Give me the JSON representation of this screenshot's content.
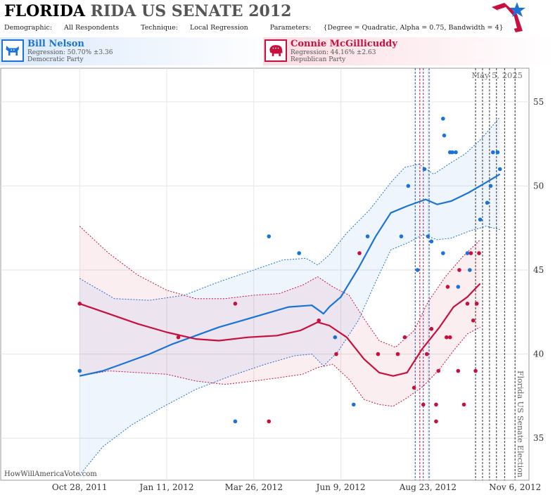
{
  "header": {
    "title_bold": "FLORIDA",
    "title_rest": "RIDA US SENATE 2012",
    "demographic_label": "Demographic:",
    "demographic_value": "All Respondents",
    "technique_label": "Technique:",
    "technique_value": "Local Regression",
    "parameters_label": "Parameters:",
    "parameters_value": "{Degree = Quadratic, Alpha = 0.75, Bandwidth = 4}"
  },
  "candidates": [
    {
      "name": "Bill Nelson",
      "regression": "Regression: 50.70% ±3.36",
      "party": "Democratic Party",
      "color": "#1a73d9"
    },
    {
      "name": "Connie McGillicuddy",
      "regression": "Regression: 44.16% ±2.63",
      "party": "Republican Party",
      "color": "#c8103e"
    }
  ],
  "footer": {
    "site": "HowWillAmericaVote.com"
  },
  "chart_data": {
    "type": "scatter",
    "x_tick_labels": [
      "Oct 28, 2011",
      "Jan 11, 2012",
      "Mar 26, 2012",
      "Jun 9, 2012",
      "Aug 23, 2012",
      "Nov 6, 2012"
    ],
    "x_ticks_day": [
      0,
      75,
      150,
      225,
      300,
      375
    ],
    "y_ticks": [
      35,
      40,
      45,
      50,
      55
    ],
    "xlim_day": [
      -68,
      387
    ],
    "ylim": [
      32.5,
      57
    ],
    "date_label": "May 5, 2025",
    "election_label": "Florida US Senate Election",
    "election_day": 375,
    "markers": [
      {
        "day": 289,
        "color": "#1a4fa0"
      },
      {
        "day": 293,
        "color": "#c8103e"
      },
      {
        "day": 296,
        "color": "#7b2a7b"
      },
      {
        "day": 301,
        "color": "#1a4fa0"
      },
      {
        "day": 341,
        "color": "#333"
      },
      {
        "day": 347,
        "color": "#333"
      },
      {
        "day": 353,
        "color": "#333"
      },
      {
        "day": 359,
        "color": "#333"
      },
      {
        "day": 366,
        "color": "#333"
      },
      {
        "day": 375,
        "color": "#333"
      }
    ],
    "series": [
      {
        "name": "Bill Nelson",
        "color": "#1a73d9",
        "points": [
          [
            0,
            39
          ],
          [
            134,
            36
          ],
          [
            163,
            47
          ],
          [
            189,
            46
          ],
          [
            220,
            41
          ],
          [
            236,
            37
          ],
          [
            248,
            47
          ],
          [
            277,
            47
          ],
          [
            283,
            50
          ],
          [
            291,
            45
          ],
          [
            297,
            51
          ],
          [
            300,
            47
          ],
          [
            303,
            46.7
          ],
          [
            313,
            46
          ],
          [
            313,
            54
          ],
          [
            314,
            53
          ],
          [
            319,
            52
          ],
          [
            321,
            52
          ],
          [
            324,
            52
          ],
          [
            326,
            44
          ],
          [
            334,
            46
          ],
          [
            336,
            45
          ],
          [
            345,
            48
          ],
          [
            351,
            49
          ],
          [
            354,
            50
          ],
          [
            356,
            52
          ],
          [
            360,
            52
          ],
          [
            362,
            51
          ]
        ],
        "fit": [
          [
            0,
            38.7
          ],
          [
            20,
            39.0
          ],
          [
            40,
            39.5
          ],
          [
            60,
            40.0
          ],
          [
            80,
            40.6
          ],
          [
            100,
            41.1
          ],
          [
            120,
            41.6
          ],
          [
            140,
            42.0
          ],
          [
            160,
            42.4
          ],
          [
            180,
            42.8
          ],
          [
            200,
            42.9
          ],
          [
            210,
            42.4
          ],
          [
            215,
            42.8
          ],
          [
            225,
            43.4
          ],
          [
            240,
            45.1
          ],
          [
            255,
            47.0
          ],
          [
            268,
            48.4
          ],
          [
            282,
            48.8
          ],
          [
            298,
            49.2
          ],
          [
            308,
            48.9
          ],
          [
            320,
            49.1
          ],
          [
            335,
            49.6
          ],
          [
            350,
            50.2
          ],
          [
            362,
            50.7
          ]
        ],
        "upper": [
          [
            0,
            44.5
          ],
          [
            30,
            43.3
          ],
          [
            60,
            43.2
          ],
          [
            90,
            43.5
          ],
          [
            120,
            44.3
          ],
          [
            150,
            45.0
          ],
          [
            175,
            45.6
          ],
          [
            195,
            45.7
          ],
          [
            205,
            45.3
          ],
          [
            215,
            45.9
          ],
          [
            230,
            47.2
          ],
          [
            250,
            48.6
          ],
          [
            268,
            50.2
          ],
          [
            280,
            51.1
          ],
          [
            292,
            51.3
          ],
          [
            305,
            50.7
          ],
          [
            318,
            51.3
          ],
          [
            332,
            51.9
          ],
          [
            346,
            52.8
          ],
          [
            362,
            54.1
          ]
        ],
        "lower": [
          [
            0,
            32.8
          ],
          [
            20,
            34.5
          ],
          [
            45,
            35.8
          ],
          [
            70,
            36.8
          ],
          [
            100,
            37.9
          ],
          [
            130,
            38.7
          ],
          [
            160,
            39.4
          ],
          [
            185,
            39.9
          ],
          [
            200,
            40.0
          ],
          [
            210,
            39.3
          ],
          [
            222,
            40.1
          ],
          [
            240,
            42.0
          ],
          [
            255,
            44.3
          ],
          [
            268,
            46.2
          ],
          [
            282,
            46.6
          ],
          [
            296,
            47.1
          ],
          [
            308,
            46.8
          ],
          [
            320,
            46.9
          ],
          [
            335,
            47.3
          ],
          [
            350,
            47.6
          ],
          [
            362,
            47.4
          ]
        ]
      },
      {
        "name": "Connie McGillicuddy",
        "color": "#c8103e",
        "points": [
          [
            0,
            43
          ],
          [
            85,
            41
          ],
          [
            134,
            43
          ],
          [
            163,
            36
          ],
          [
            206,
            42
          ],
          [
            221,
            40
          ],
          [
            241,
            46
          ],
          [
            257,
            40
          ],
          [
            274,
            40
          ],
          [
            280,
            41
          ],
          [
            288,
            38
          ],
          [
            296,
            37
          ],
          [
            299,
            40
          ],
          [
            303,
            41.5
          ],
          [
            307,
            36
          ],
          [
            307,
            37
          ],
          [
            309,
            39
          ],
          [
            316,
            41
          ],
          [
            317,
            44
          ],
          [
            319,
            41
          ],
          [
            326,
            39
          ],
          [
            327,
            45
          ],
          [
            331,
            37
          ],
          [
            334,
            43
          ],
          [
            337,
            46
          ],
          [
            339,
            42
          ],
          [
            341,
            39
          ],
          [
            342,
            43
          ],
          [
            344,
            46
          ]
        ],
        "fit": [
          [
            0,
            43.0
          ],
          [
            25,
            42.4
          ],
          [
            50,
            41.8
          ],
          [
            75,
            41.3
          ],
          [
            100,
            40.9
          ],
          [
            120,
            40.8
          ],
          [
            145,
            41.0
          ],
          [
            170,
            41.1
          ],
          [
            190,
            41.4
          ],
          [
            205,
            41.9
          ],
          [
            215,
            41.7
          ],
          [
            230,
            41.0
          ],
          [
            245,
            39.7
          ],
          [
            258,
            38.9
          ],
          [
            270,
            38.7
          ],
          [
            282,
            38.9
          ],
          [
            295,
            40.3
          ],
          [
            310,
            41.6
          ],
          [
            322,
            42.8
          ],
          [
            334,
            43.4
          ],
          [
            345,
            44.2
          ]
        ],
        "upper": [
          [
            0,
            47.6
          ],
          [
            25,
            46.0
          ],
          [
            50,
            44.7
          ],
          [
            75,
            43.8
          ],
          [
            100,
            43.3
          ],
          [
            125,
            43.3
          ],
          [
            150,
            43.5
          ],
          [
            172,
            43.6
          ],
          [
            192,
            44.1
          ],
          [
            205,
            44.6
          ],
          [
            218,
            44.0
          ],
          [
            232,
            43.5
          ],
          [
            245,
            42.1
          ],
          [
            258,
            40.8
          ],
          [
            272,
            40.4
          ],
          [
            288,
            41.4
          ],
          [
            300,
            43.1
          ],
          [
            315,
            44.6
          ],
          [
            330,
            45.8
          ],
          [
            345,
            46.8
          ]
        ],
        "lower": [
          [
            0,
            38.7
          ],
          [
            25,
            39.0
          ],
          [
            50,
            38.9
          ],
          [
            75,
            38.8
          ],
          [
            100,
            38.4
          ],
          [
            125,
            38.2
          ],
          [
            150,
            38.4
          ],
          [
            172,
            38.6
          ],
          [
            192,
            38.8
          ],
          [
            205,
            39.2
          ],
          [
            218,
            39.4
          ],
          [
            232,
            38.5
          ],
          [
            245,
            37.3
          ],
          [
            258,
            37.0
          ],
          [
            270,
            36.9
          ],
          [
            282,
            37.4
          ],
          [
            296,
            38.1
          ],
          [
            310,
            39.1
          ],
          [
            322,
            40.2
          ],
          [
            334,
            41.2
          ],
          [
            345,
            41.6
          ]
        ]
      }
    ]
  }
}
